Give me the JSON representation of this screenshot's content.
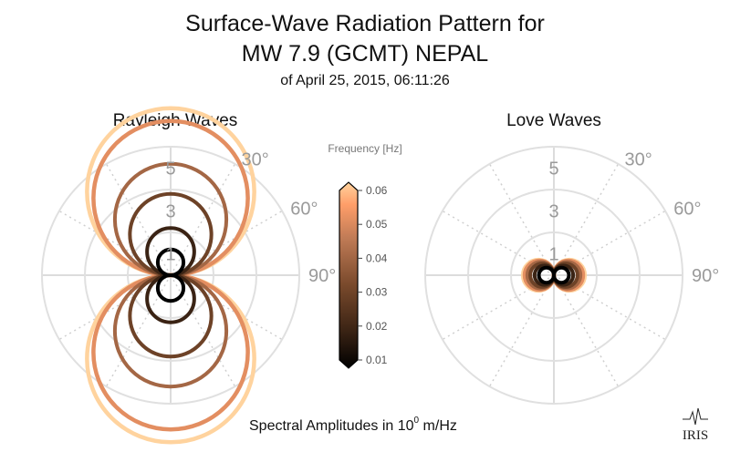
{
  "title_line1": "Surface-Wave Radiation Pattern for",
  "title_line2": "MW 7.9 (GCMT) NEPAL",
  "subtitle": "of April 25, 2015, 06:11:26",
  "footer": {
    "prefix": "Spectral Amplitudes in ",
    "base": "10",
    "exponent": "0",
    "suffix": " m/Hz"
  },
  "logo": "IRIS",
  "colorbar": {
    "label": "Frequency [Hz]",
    "min": 0.01,
    "max": 0.06,
    "ticks": [
      "0.01",
      "0.02",
      "0.03",
      "0.04",
      "0.05",
      "0.06"
    ],
    "colors": [
      "#000000",
      "#3a2314",
      "#7a4a2c",
      "#c07b56",
      "#ff9e69",
      "#ffd39e"
    ]
  },
  "chart_data": [
    {
      "type": "polar",
      "title": "Rayleigh Waves",
      "radial_ticks": [
        "1",
        "3",
        "5"
      ],
      "radial_max": 6,
      "angle_ticks": [
        "30°",
        "60°",
        "90°"
      ],
      "grid": true,
      "series": [
        {
          "frequency": 0.01,
          "lobe_center": 0.6,
          "lobe_radius": 0.6
        },
        {
          "frequency": 0.02,
          "lobe_center": 1.1,
          "lobe_radius": 1.1
        },
        {
          "frequency": 0.03,
          "lobe_center": 1.9,
          "lobe_radius": 1.9
        },
        {
          "frequency": 0.04,
          "lobe_center": 2.6,
          "lobe_radius": 2.6
        },
        {
          "frequency": 0.05,
          "lobe_center": 3.6,
          "lobe_radius": 3.6
        },
        {
          "frequency": 0.06,
          "lobe_center": 3.9,
          "lobe_radius": 3.9
        }
      ]
    },
    {
      "type": "polar",
      "title": "Love Waves",
      "radial_ticks": [
        "1",
        "3",
        "5"
      ],
      "radial_max": 6,
      "angle_ticks": [
        "30°",
        "60°",
        "90°"
      ],
      "grid": true,
      "series": [
        {
          "frequency": 0.01,
          "lobe_center": 0.35,
          "lobe_radius": 0.35
        },
        {
          "frequency": 0.02,
          "lobe_center": 0.45,
          "lobe_radius": 0.45
        },
        {
          "frequency": 0.03,
          "lobe_center": 0.55,
          "lobe_radius": 0.55
        },
        {
          "frequency": 0.04,
          "lobe_center": 0.62,
          "lobe_radius": 0.62
        },
        {
          "frequency": 0.05,
          "lobe_center": 0.68,
          "lobe_radius": 0.68
        },
        {
          "frequency": 0.06,
          "lobe_center": 0.72,
          "lobe_radius": 0.72
        }
      ]
    }
  ]
}
